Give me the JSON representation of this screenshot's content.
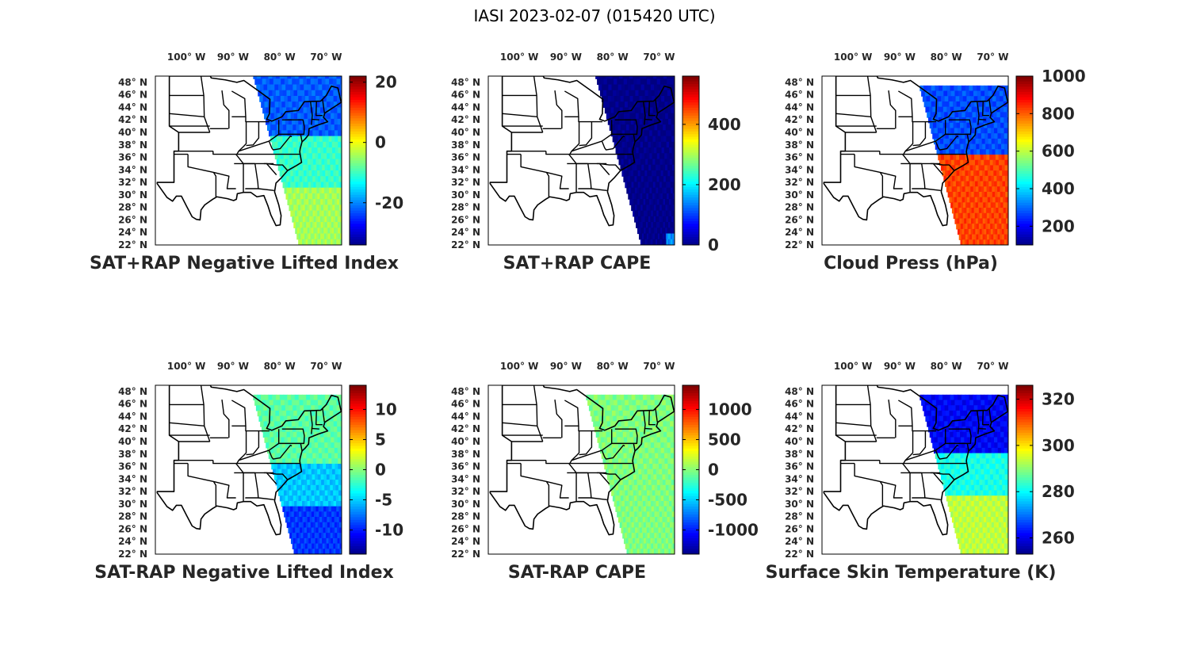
{
  "figure_title": "IASI 2023-02-07 (015420 UTC)",
  "colors": {
    "map_background": "#ffffff",
    "state_lines": "#000000",
    "colormap": "jet",
    "dark_blue": "#000080",
    "light_green": "#80ff80"
  },
  "chart_data": [
    {
      "type": "heatmap",
      "title": "SAT+RAP Negative Lifted Index",
      "lon_ticks": [
        "100° W",
        "90° W",
        "80° W",
        "70° W"
      ],
      "lat_ticks": [
        "48° N",
        "46° N",
        "44° N",
        "42° N",
        "40° N",
        "38° N",
        "36° N",
        "34° N",
        "32° N",
        "30° N",
        "28° N",
        "26° N",
        "24° N",
        "22° N"
      ],
      "lon_range": [
        -107,
        -67
      ],
      "lat_range": [
        22,
        49
      ],
      "colorbar": {
        "range": [
          -34,
          22
        ],
        "ticks": [
          20,
          0,
          -20
        ]
      },
      "field": {
        "west_edge_lon": [
          -86,
          -76
        ],
        "regions": [
          {
            "lat_range": [
              38,
              49
            ],
            "approx_value": -22
          },
          {
            "lat_range": [
              30,
              38
            ],
            "approx_value": -10
          },
          {
            "lat_range": [
              22,
              30
            ],
            "approx_value": -4
          }
        ]
      }
    },
    {
      "type": "heatmap",
      "title": "SAT+RAP CAPE",
      "lon_ticks": [
        "100° W",
        "90° W",
        "80° W",
        "70° W"
      ],
      "lat_ticks": [
        "48° N",
        "46° N",
        "44° N",
        "42° N",
        "40° N",
        "38° N",
        "36° N",
        "34° N",
        "32° N",
        "30° N",
        "28° N",
        "26° N",
        "24° N",
        "22° N"
      ],
      "lon_range": [
        -107,
        -67
      ],
      "lat_range": [
        22,
        49
      ],
      "colorbar": {
        "range": [
          0,
          560
        ],
        "ticks": [
          400,
          200,
          0
        ]
      },
      "field": {
        "west_edge_lon": [
          -84,
          -74
        ],
        "regions": [
          {
            "lat_range": [
              22,
              49
            ],
            "approx_value": 0
          },
          {
            "lat_range": [
              22,
              24
            ],
            "approx_value": 150
          }
        ]
      }
    },
    {
      "type": "heatmap",
      "title": "Cloud Press (hPa)",
      "lon_ticks": [
        "100° W",
        "90° W",
        "80° W",
        "70° W"
      ],
      "lat_ticks": [
        "48° N",
        "46° N",
        "44° N",
        "42° N",
        "40° N",
        "38° N",
        "36° N",
        "34° N",
        "32° N",
        "30° N",
        "28° N",
        "26° N",
        "24° N",
        "22° N"
      ],
      "lon_range": [
        -107,
        -67
      ],
      "lat_range": [
        22,
        49
      ],
      "colorbar": {
        "range": [
          100,
          1000
        ],
        "ticks": [
          1000,
          800,
          600,
          400,
          200
        ]
      },
      "field": {
        "west_edge_lon": [
          -86,
          -77
        ],
        "regions": [
          {
            "lat_range": [
              36,
              47
            ],
            "approx_value": 280
          },
          {
            "lat_range": [
              22,
              36
            ],
            "approx_value": 830
          }
        ]
      }
    },
    {
      "type": "heatmap",
      "title": "SAT-RAP Negative Lifted Index",
      "lon_ticks": [
        "100° W",
        "90° W",
        "80° W",
        "70° W"
      ],
      "lat_ticks": [
        "48° N",
        "46° N",
        "44° N",
        "42° N",
        "40° N",
        "38° N",
        "36° N",
        "34° N",
        "32° N",
        "30° N",
        "28° N",
        "26° N",
        "24° N",
        "22° N"
      ],
      "lon_range": [
        -107,
        -67
      ],
      "lat_range": [
        22,
        49
      ],
      "colorbar": {
        "range": [
          -14,
          14
        ],
        "ticks": [
          10,
          5,
          0,
          -5,
          -10
        ]
      },
      "field": {
        "west_edge_lon": [
          -86,
          -77
        ],
        "regions": [
          {
            "lat_range": [
              38,
              47
            ],
            "approx_value": -1
          },
          {
            "lat_range": [
              30,
              38
            ],
            "approx_value": -5
          },
          {
            "lat_range": [
              22,
              30
            ],
            "approx_value": -9
          }
        ]
      }
    },
    {
      "type": "heatmap",
      "title": "SAT-RAP CAPE",
      "lon_ticks": [
        "100° W",
        "90° W",
        "80° W",
        "70° W"
      ],
      "lat_ticks": [
        "48° N",
        "46° N",
        "44° N",
        "42° N",
        "40° N",
        "38° N",
        "36° N",
        "34° N",
        "32° N",
        "30° N",
        "28° N",
        "26° N",
        "24° N",
        "22° N"
      ],
      "lon_range": [
        -107,
        -67
      ],
      "lat_range": [
        22,
        49
      ],
      "colorbar": {
        "range": [
          -1400,
          1400
        ],
        "ticks": [
          1000,
          500,
          0,
          -500,
          -1000
        ]
      },
      "field": {
        "west_edge_lon": [
          -86,
          -77
        ],
        "regions": [
          {
            "lat_range": [
              22,
              47
            ],
            "approx_value": 0
          }
        ]
      }
    },
    {
      "type": "heatmap",
      "title": "Surface Skin Temperature (K)",
      "lon_ticks": [
        "100° W",
        "90° W",
        "80° W",
        "70° W"
      ],
      "lat_ticks": [
        "48° N",
        "46° N",
        "44° N",
        "42° N",
        "40° N",
        "38° N",
        "36° N",
        "34° N",
        "32° N",
        "30° N",
        "28° N",
        "26° N",
        "24° N",
        "22° N"
      ],
      "lon_range": [
        -107,
        -67
      ],
      "lat_range": [
        22,
        49
      ],
      "colorbar": {
        "range": [
          253,
          326
        ],
        "ticks": [
          320,
          300,
          280,
          260
        ]
      },
      "field": {
        "west_edge_lon": [
          -86,
          -77
        ],
        "regions": [
          {
            "lat_range": [
              38,
              49
            ],
            "approx_value": 262
          },
          {
            "lat_range": [
              30,
              38
            ],
            "approx_value": 282
          },
          {
            "lat_range": [
              22,
              30
            ],
            "approx_value": 294
          }
        ]
      }
    }
  ]
}
